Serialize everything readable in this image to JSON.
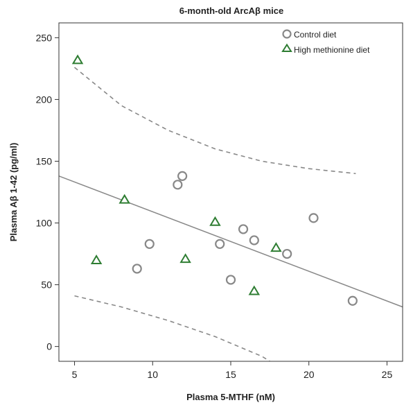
{
  "chart_data": {
    "type": "scatter",
    "title": "6-month-old ArcAβ mice",
    "xlabel": "Plasma 5-MTHF (nM)",
    "ylabel": "Plasma Aβ 1-42 (pg/ml)",
    "xlim": [
      4,
      26
    ],
    "ylim": [
      -12,
      262
    ],
    "x_ticks": [
      5,
      10,
      15,
      20,
      25
    ],
    "y_ticks": [
      0,
      50,
      100,
      150,
      200,
      250
    ],
    "grid": false,
    "legend_position": "top-right",
    "series": [
      {
        "name": "Control diet",
        "marker": "circle",
        "color": "#888888",
        "points": [
          {
            "x": 9.0,
            "y": 63
          },
          {
            "x": 9.8,
            "y": 83
          },
          {
            "x": 11.6,
            "y": 131
          },
          {
            "x": 11.9,
            "y": 138
          },
          {
            "x": 14.3,
            "y": 83
          },
          {
            "x": 15.0,
            "y": 54
          },
          {
            "x": 15.8,
            "y": 95
          },
          {
            "x": 16.5,
            "y": 86
          },
          {
            "x": 18.6,
            "y": 75
          },
          {
            "x": 20.3,
            "y": 104
          },
          {
            "x": 22.8,
            "y": 37
          }
        ]
      },
      {
        "name": "High methionine diet",
        "marker": "triangle",
        "color": "#2e7d32",
        "points": [
          {
            "x": 5.2,
            "y": 232
          },
          {
            "x": 6.4,
            "y": 70
          },
          {
            "x": 8.2,
            "y": 119
          },
          {
            "x": 12.1,
            "y": 71
          },
          {
            "x": 14.0,
            "y": 101
          },
          {
            "x": 16.5,
            "y": 45
          },
          {
            "x": 17.9,
            "y": 80
          }
        ]
      }
    ],
    "fit_line": {
      "x": [
        4,
        26
      ],
      "y": [
        138,
        32
      ],
      "color": "#888888"
    },
    "confidence_band": {
      "color": "#888888",
      "upper": [
        [
          5,
          226
        ],
        [
          8,
          195
        ],
        [
          11,
          175
        ],
        [
          14,
          160
        ],
        [
          17,
          150
        ],
        [
          20,
          144
        ],
        [
          23,
          140
        ]
      ],
      "lower": [
        [
          5,
          41
        ],
        [
          8,
          32
        ],
        [
          11,
          21
        ],
        [
          14,
          8
        ],
        [
          17,
          -8
        ],
        [
          17.5,
          -12
        ]
      ]
    }
  }
}
